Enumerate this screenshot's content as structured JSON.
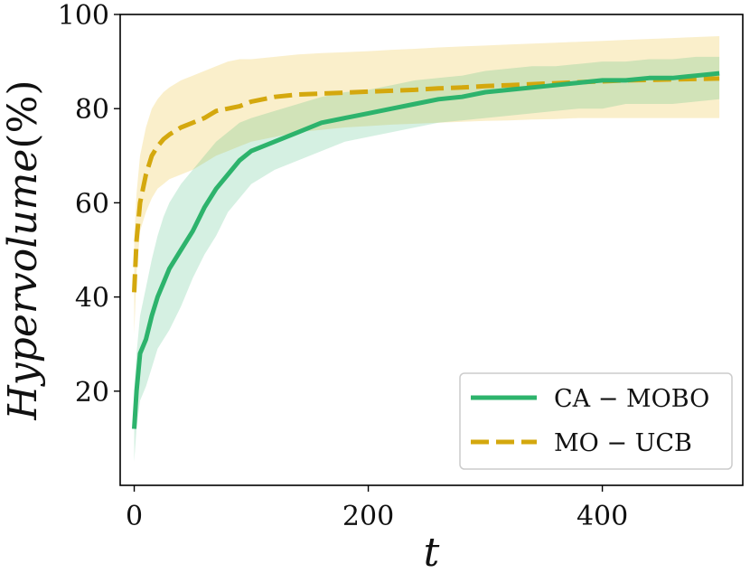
{
  "chart_data": {
    "type": "line",
    "xlabel": "t",
    "ylabel_italic": "Hypervolume",
    "ylabel_unit": "(%)",
    "xlim": [
      -12,
      520
    ],
    "ylim": [
      0,
      100
    ],
    "xticks": [
      0,
      200,
      400
    ],
    "yticks": [
      20,
      40,
      60,
      80,
      100
    ],
    "legend_position": "lower-right",
    "series": [
      {
        "name": "CA − MOBO",
        "color": "#2db36c",
        "band_color": "#2db36c",
        "linestyle": "solid",
        "x": [
          0,
          2,
          5,
          10,
          15,
          20,
          25,
          30,
          40,
          50,
          60,
          70,
          80,
          90,
          100,
          120,
          140,
          160,
          180,
          200,
          220,
          240,
          260,
          280,
          300,
          320,
          340,
          360,
          380,
          400,
          420,
          440,
          460,
          480,
          500
        ],
        "values": [
          12,
          20,
          28,
          31,
          36,
          40,
          43,
          46,
          50,
          54,
          59,
          63,
          66,
          69,
          71,
          73,
          75,
          77,
          78,
          79,
          80,
          81,
          82,
          82.5,
          83.5,
          84,
          84.5,
          85,
          85.5,
          86,
          86,
          86.5,
          86.5,
          87,
          87.5
        ],
        "lower": [
          5,
          12,
          18,
          21,
          25,
          29,
          31,
          33,
          38,
          44,
          49,
          53,
          58,
          61,
          64,
          67,
          69,
          71,
          73,
          74,
          75,
          76,
          77,
          77.5,
          78,
          78.5,
          79,
          79.5,
          80,
          80,
          81,
          81,
          81,
          81.5,
          82
        ],
        "upper": [
          20,
          28,
          36,
          42,
          48,
          53,
          57,
          60,
          64,
          67,
          70,
          73,
          75,
          77,
          78,
          79.5,
          81,
          82.5,
          83.5,
          84,
          85,
          86,
          86.5,
          87,
          88,
          88.5,
          89,
          89,
          89.5,
          90,
          90,
          90.5,
          90.5,
          91,
          91
        ]
      },
      {
        "name": "MO − UCB",
        "color": "#d4a80e",
        "band_color": "#f2d26a",
        "linestyle": "dashed",
        "x": [
          0,
          2,
          5,
          10,
          15,
          20,
          25,
          30,
          40,
          50,
          60,
          70,
          80,
          90,
          100,
          120,
          140,
          160,
          180,
          200,
          220,
          240,
          260,
          280,
          300,
          320,
          340,
          360,
          380,
          400,
          420,
          440,
          460,
          480,
          500
        ],
        "values": [
          41,
          52,
          60,
          66,
          70,
          72,
          73.5,
          74.5,
          76,
          77,
          78,
          79.5,
          80,
          80.5,
          81.5,
          82.5,
          83,
          83.2,
          83.4,
          83.6,
          83.8,
          84,
          84.3,
          84.5,
          84.8,
          85,
          85.2,
          85.4,
          85.6,
          85.8,
          86,
          86.1,
          86.2,
          86.3,
          86.4
        ],
        "lower": [
          32,
          45,
          54,
          58,
          61,
          63,
          64,
          65,
          66,
          67,
          68.5,
          70,
          71,
          72,
          73,
          74,
          75,
          75.5,
          76,
          76.3,
          76.6,
          76.8,
          77,
          77.2,
          77.4,
          77.5,
          77.7,
          77.8,
          78,
          78,
          78,
          78,
          78,
          78,
          78
        ],
        "upper": [
          52,
          62,
          70,
          76,
          80,
          82,
          83.5,
          84.5,
          86,
          87,
          88,
          89,
          90,
          90.5,
          90.5,
          91,
          91.5,
          91.8,
          92,
          92.2,
          92.5,
          92.7,
          93,
          93.2,
          93.4,
          93.6,
          93.8,
          94,
          94.2,
          94.4,
          94.6,
          94.8,
          95,
          95.2,
          95.4
        ]
      }
    ]
  }
}
